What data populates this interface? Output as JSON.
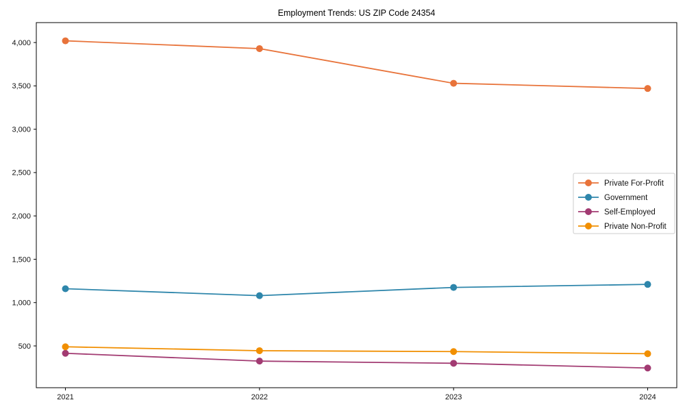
{
  "chart_data": {
    "type": "line",
    "title": "Employment Trends: US ZIP Code 24354",
    "x": [
      "2021",
      "2022",
      "2023",
      "2024"
    ],
    "series": [
      {
        "name": "Private For-Profit",
        "color": "#e8733a",
        "values": [
          4020,
          3930,
          3530,
          3470
        ]
      },
      {
        "name": "Government",
        "color": "#2e86ab",
        "values": [
          1160,
          1080,
          1175,
          1210
        ]
      },
      {
        "name": "Self-Employed",
        "color": "#a23b72",
        "values": [
          415,
          325,
          300,
          245
        ]
      },
      {
        "name": "Private Non-Profit",
        "color": "#f18f01",
        "values": [
          490,
          445,
          435,
          410
        ]
      }
    ],
    "y_ticks": [
      500,
      1000,
      1500,
      2000,
      2500,
      3000,
      3500,
      4000
    ],
    "y_tick_labels": [
      "500",
      "1,000",
      "1,500",
      "2,000",
      "2,500",
      "3,000",
      "3,500",
      "4,000"
    ],
    "ylim": [
      18,
      4230
    ],
    "xlabel": "",
    "ylabel": "",
    "grid": false,
    "marker": "circle",
    "legend_position": "center-right",
    "legend_entries": [
      "Private For-Profit",
      "Government",
      "Self-Employed",
      "Private Non-Profit"
    ],
    "frame_color": "#000000",
    "legend_border_color": "#cccccc",
    "tick_label_color": "#111111",
    "background_color": "#ffffff"
  }
}
